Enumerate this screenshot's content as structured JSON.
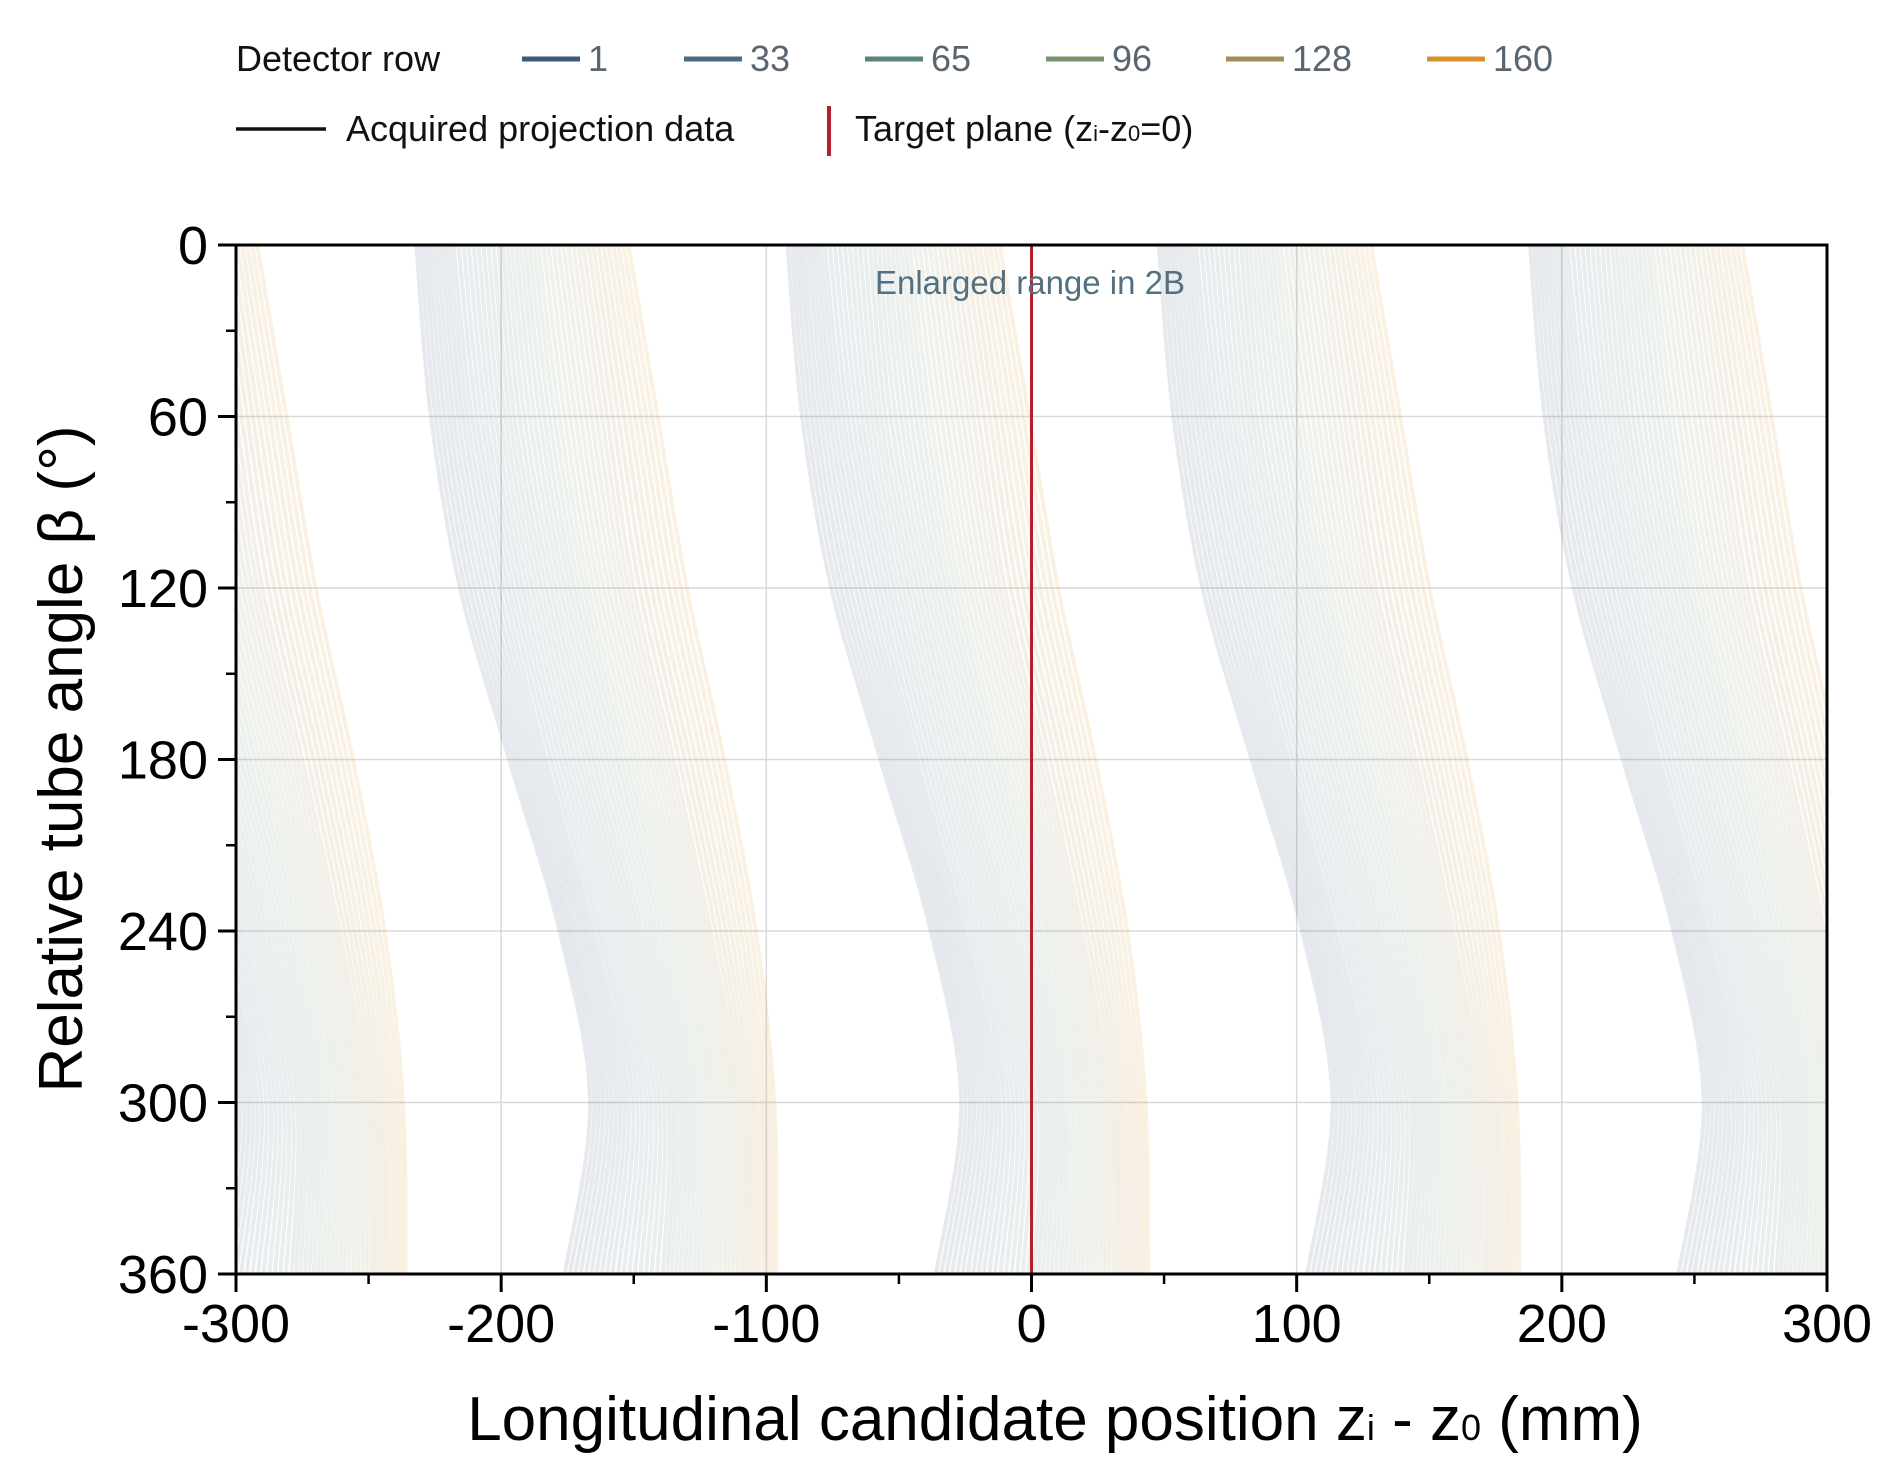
{
  "chart_data": {
    "type": "line",
    "title": "",
    "xlabel": "Longitudinal candidate position  zi - z0  (mm)",
    "xlabel_parts": {
      "main": "Longitudinal candidate position  ",
      "z1": "z",
      "sub1": "i",
      "mid": " - ",
      "z2": "z",
      "sub2": "0",
      "unit": "  (mm)"
    },
    "ylabel": "Relative tube angle  β  (°)",
    "xlim": [
      -300,
      300
    ],
    "ylim": [
      0,
      360
    ],
    "y_inverted": true,
    "x_ticks": [
      "-300",
      "-200",
      "-100",
      "0",
      "100",
      "200",
      "300"
    ],
    "x_tick_values": [
      -300,
      -200,
      -100,
      0,
      100,
      200,
      300
    ],
    "y_ticks": [
      "0",
      "60",
      "120",
      "180",
      "240",
      "300",
      "360"
    ],
    "y_tick_values": [
      0,
      60,
      120,
      180,
      240,
      300,
      360
    ],
    "grid": true,
    "legend": {
      "placement": "top",
      "title": "Detector row",
      "rows": [
        "1",
        "33",
        "65",
        "96",
        "128",
        "160"
      ],
      "row_colors": [
        "#3d5a7a",
        "#4a6b80",
        "#5a857f",
        "#7a9370",
        "#a08c55",
        "#d8912a"
      ],
      "acquired_label": "Acquired projection data",
      "target_label": "Target plane (zi-z0=0)",
      "target_parts": {
        "pre": "Target plane (",
        "z1": "z",
        "sub1": "i",
        "mid": "-",
        "z2": "z",
        "sub2": "0",
        "post": "=0)"
      }
    },
    "annotation": "Enlarged range in 2B",
    "target_plane_x": 0,
    "target_color": "#b22030",
    "helical_pitch_mm": 140,
    "band_offsets_mm": [
      -280,
      -140,
      0,
      140,
      280,
      420
    ],
    "series": [
      {
        "name": "1",
        "points": [
          [
            -79,
            0
          ],
          [
            -73.5,
            60
          ],
          [
            -62.5,
            120
          ],
          [
            -44,
            180
          ],
          [
            -25,
            240
          ],
          [
            -13.5,
            300
          ],
          [
            -23,
            360
          ]
        ]
      },
      {
        "name": "33",
        "points": [
          [
            -65,
            0
          ],
          [
            -58,
            60
          ],
          [
            -46,
            120
          ],
          [
            -30,
            180
          ],
          [
            -12,
            240
          ],
          [
            1,
            300
          ],
          [
            -5,
            360
          ]
        ]
      },
      {
        "name": "65",
        "points": [
          [
            -48,
            0
          ],
          [
            -42,
            60
          ],
          [
            -30,
            120
          ],
          [
            -14,
            180
          ],
          [
            3,
            240
          ],
          [
            16,
            300
          ],
          [
            14,
            360
          ]
        ]
      },
      {
        "name": "96",
        "points": [
          [
            -33,
            0
          ],
          [
            -25,
            60
          ],
          [
            -14,
            120
          ],
          [
            2,
            180
          ],
          [
            18,
            240
          ],
          [
            30,
            300
          ],
          [
            29,
            360
          ]
        ]
      },
      {
        "name": "128",
        "points": [
          [
            -16,
            0
          ],
          [
            -7,
            60
          ],
          [
            3,
            120
          ],
          [
            18,
            180
          ],
          [
            32,
            240
          ],
          [
            43,
            300
          ],
          [
            44,
            360
          ]
        ]
      },
      {
        "name": "160",
        "points": [
          [
            1,
            0
          ],
          [
            12,
            60
          ],
          [
            23,
            120
          ],
          [
            37,
            180
          ],
          [
            49,
            240
          ],
          [
            56,
            300
          ],
          [
            57,
            360
          ]
        ]
      }
    ]
  }
}
